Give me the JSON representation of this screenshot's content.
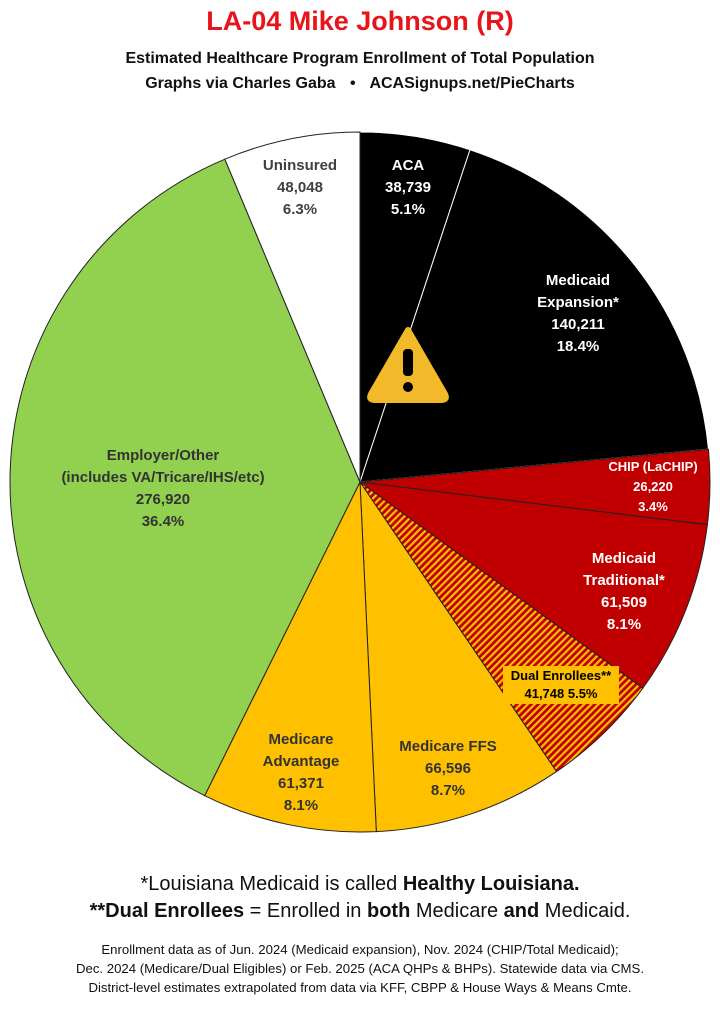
{
  "header": {
    "title": "LA-04 Mike Johnson (R)",
    "subtitle": "Estimated Healthcare Program Enrollment of Total Population",
    "credit_left": "Graphs via Charles Gaba",
    "credit_sep": "•",
    "credit_right": "ACASignups.net/PieCharts"
  },
  "chart_data": {
    "type": "pie",
    "title": "LA-04 Mike Johnson (R)",
    "start": "12 o'clock, clockwise",
    "slices": [
      {
        "lines": [
          "ACA"
        ],
        "value": 38739,
        "value_label": "38,739",
        "pct": "5.1%",
        "color": "#000000",
        "text_color": "#ffffff"
      },
      {
        "lines": [
          "Medicaid",
          "Expansion*"
        ],
        "value": 140211,
        "value_label": "140,211",
        "pct": "18.4%",
        "color": "#000000",
        "text_color": "#ffffff"
      },
      {
        "lines": [
          "CHIP (LaCHIP)"
        ],
        "value": 26220,
        "value_label": "26,220",
        "pct": "3.4%",
        "color": "#c00000",
        "text_color": "#ffffff"
      },
      {
        "lines": [
          "Medicaid",
          "Traditional*"
        ],
        "value": 61509,
        "value_label": "61,509",
        "pct": "8.1%",
        "color": "#c00000",
        "text_color": "#ffffff"
      },
      {
        "lines": [
          "Dual Enrollees**"
        ],
        "value": 41748,
        "value_label": "41,748",
        "pct": "5.5%",
        "color": "#c00000",
        "hatch_color": "#ffc000",
        "pattern": "hatched",
        "text_color": "#000000"
      },
      {
        "lines": [
          "Medicare FFS"
        ],
        "value": 66596,
        "value_label": "66,596",
        "pct": "8.7%",
        "color": "#ffc000",
        "text_color": "#333333"
      },
      {
        "lines": [
          "Medicare",
          "Advantage"
        ],
        "value": 61371,
        "value_label": "61,371",
        "pct": "8.1%",
        "color": "#ffc000",
        "text_color": "#333333"
      },
      {
        "lines": [
          "Employer/Other",
          "(includes VA/Tricare/IHS/etc)"
        ],
        "value": 276920,
        "value_label": "276,920",
        "pct": "36.4%",
        "color": "#92d050",
        "text_color": "#333333"
      },
      {
        "lines": [
          "Uninsured"
        ],
        "value": 48048,
        "value_label": "48,048",
        "pct": "6.3%",
        "color": "#ffffff",
        "text_color": "#404040"
      }
    ],
    "warning_icon": "warning-triangle-icon"
  },
  "footnotes": {
    "note1_pre": "*Louisiana Medicaid is called ",
    "note1_bold": "Healthy Louisiana.",
    "note2_bold1": "**Dual Enrollees",
    "note2_mid1": " = Enrolled in ",
    "note2_bold2": "both",
    "note2_mid2": " Medicare ",
    "note2_bold3": "and",
    "note2_end": " Medicaid."
  },
  "sources": {
    "line1": "Enrollment data as of Jun. 2024 (Medicaid expansion), Nov. 2024 (CHIP/Total Medicaid);",
    "line2": "Dec. 2024 (Medicare/Dual Eligibles) or Feb. 2025 (ACA QHPs & BHPs). Statewide data via CMS.",
    "line3": "District-level estimates extrapolated from data via KFF, CBPP & House Ways & Means Cmte."
  }
}
